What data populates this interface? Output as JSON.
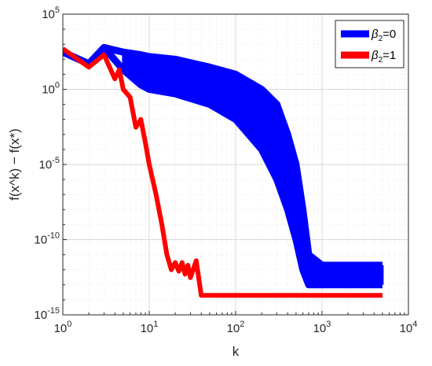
{
  "chart_data": {
    "type": "line",
    "xlabel": "k",
    "ylabel": "f(x^k) − f(x*)",
    "xscale": "log",
    "yscale": "log",
    "xlim": [
      1,
      10000
    ],
    "ylim": [
      1e-15,
      100000.0
    ],
    "grid": true,
    "legend_position": "top-right",
    "x_ticks": [
      {
        "value": 1,
        "base": "10",
        "exp": "0"
      },
      {
        "value": 10,
        "base": "10",
        "exp": "1"
      },
      {
        "value": 100,
        "base": "10",
        "exp": "2"
      },
      {
        "value": 1000,
        "base": "10",
        "exp": "3"
      },
      {
        "value": 10000,
        "base": "10",
        "exp": "4"
      }
    ],
    "y_ticks": [
      {
        "value": 100000.0,
        "base": "10",
        "exp": "5"
      },
      {
        "value": 1,
        "base": "10",
        "exp": "0"
      },
      {
        "value": 1e-05,
        "base": "10",
        "exp": "-5"
      },
      {
        "value": 1e-10,
        "base": "10",
        "exp": "-10"
      },
      {
        "value": 1e-15,
        "base": "10",
        "exp": "-15"
      }
    ],
    "series": [
      {
        "name": "β2=0",
        "legend_symbol": "β",
        "legend_sub": "2",
        "legend_rest": "=0",
        "color": "#0000ff",
        "x": [
          1,
          2,
          3,
          5,
          8,
          10,
          20,
          50,
          100,
          200,
          300,
          400,
          500,
          600,
          700,
          1000,
          2000,
          5000
        ],
        "y": [
          300,
          50,
          600,
          300,
          200,
          150,
          100,
          30,
          10,
          1,
          0.1,
          0.001,
          1e-05,
          1e-08,
          1e-11,
          2e-12,
          2e-12,
          2e-12
        ],
        "y_low": [
          300,
          50,
          600,
          20,
          2,
          1,
          0.5,
          0.1,
          0.01,
          0.0001,
          1e-06,
          1e-08,
          1e-10,
          1e-12,
          1e-13,
          1e-13,
          1e-13,
          1e-13
        ]
      },
      {
        "name": "β2=1",
        "legend_symbol": "β",
        "legend_sub": "2",
        "legend_rest": "=1",
        "color": "#ff0000",
        "x": [
          1,
          2,
          3,
          4,
          4.5,
          5,
          6,
          7,
          8,
          9,
          10,
          12,
          14,
          16,
          18,
          20,
          22,
          24,
          26,
          28,
          30,
          35,
          40,
          100,
          1000,
          5000
        ],
        "y": [
          500,
          30,
          200,
          5,
          20,
          1,
          0.3,
          0.003,
          0.01,
          0.0003,
          1e-05,
          1e-07,
          1e-09,
          1e-11,
          1e-12,
          3e-12,
          8e-13,
          3e-12,
          5e-13,
          2e-12,
          3e-13,
          4e-12,
          2e-14,
          2e-14,
          2e-14,
          2e-14
        ]
      }
    ]
  }
}
